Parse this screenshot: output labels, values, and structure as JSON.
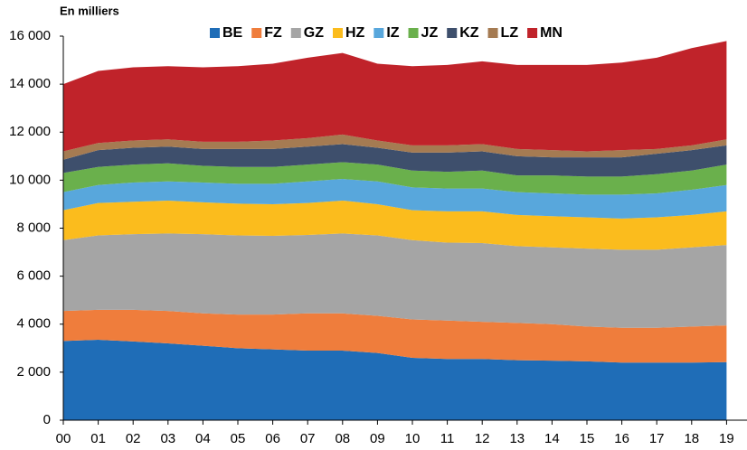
{
  "chart_data": {
    "type": "stacked_area",
    "y_label": "En milliers",
    "categories": [
      "00",
      "01",
      "02",
      "03",
      "04",
      "05",
      "06",
      "07",
      "08",
      "09",
      "10",
      "11",
      "12",
      "13",
      "14",
      "15",
      "16",
      "17",
      "18",
      "19"
    ],
    "series": [
      {
        "name": "BE",
        "color": "#1f6db7",
        "values": [
          3300,
          3350,
          3280,
          3200,
          3100,
          3000,
          2950,
          2900,
          2900,
          2800,
          2600,
          2550,
          2550,
          2500,
          2480,
          2450,
          2400,
          2400,
          2400,
          2420
        ]
      },
      {
        "name": "FZ",
        "color": "#ef7d3c",
        "values": [
          1250,
          1250,
          1320,
          1350,
          1350,
          1400,
          1450,
          1550,
          1550,
          1550,
          1600,
          1600,
          1550,
          1550,
          1520,
          1450,
          1450,
          1450,
          1500,
          1530
        ]
      },
      {
        "name": "GZ",
        "color": "#a5a5a5",
        "values": [
          2950,
          3100,
          3150,
          3230,
          3300,
          3300,
          3280,
          3270,
          3330,
          3350,
          3300,
          3250,
          3280,
          3200,
          3200,
          3250,
          3250,
          3250,
          3300,
          3350
        ]
      },
      {
        "name": "HZ",
        "color": "#fbbc1d",
        "values": [
          1250,
          1350,
          1350,
          1370,
          1330,
          1320,
          1320,
          1330,
          1370,
          1300,
          1250,
          1300,
          1320,
          1300,
          1300,
          1300,
          1300,
          1350,
          1350,
          1400
        ]
      },
      {
        "name": "IZ",
        "color": "#58a7dc",
        "values": [
          750,
          750,
          800,
          800,
          820,
          830,
          850,
          900,
          900,
          950,
          950,
          950,
          950,
          950,
          950,
          950,
          1000,
          1000,
          1050,
          1100
        ]
      },
      {
        "name": "JZ",
        "color": "#6ab04c",
        "values": [
          800,
          750,
          750,
          750,
          700,
          700,
          700,
          700,
          700,
          700,
          700,
          700,
          750,
          700,
          750,
          750,
          750,
          800,
          800,
          850
        ]
      },
      {
        "name": "KZ",
        "color": "#3e4f6c",
        "values": [
          550,
          700,
          700,
          700,
          700,
          750,
          750,
          750,
          750,
          700,
          750,
          800,
          800,
          800,
          750,
          800,
          800,
          850,
          850,
          800
        ]
      },
      {
        "name": "LZ",
        "color": "#a57b52",
        "values": [
          350,
          300,
          300,
          300,
          300,
          300,
          350,
          350,
          400,
          300,
          300,
          300,
          300,
          300,
          300,
          250,
          300,
          200,
          200,
          250
        ]
      },
      {
        "name": "MN",
        "color": "#c0232a",
        "values": [
          2800,
          3000,
          3050,
          3050,
          3100,
          3150,
          3200,
          3350,
          3400,
          3200,
          3300,
          3350,
          3450,
          3500,
          3550,
          3600,
          3650,
          3800,
          4050,
          4100
        ]
      }
    ],
    "ylim": [
      0,
      16000
    ],
    "yticks": [
      0,
      {
        "value": 2000,
        "label": "2 000"
      },
      {
        "value": 4000,
        "label": "4 000"
      },
      {
        "value": 6000,
        "label": "6 000"
      },
      {
        "value": 8000,
        "label": "8 000"
      },
      {
        "value": 10000,
        "label": "10 000"
      },
      {
        "value": 12000,
        "label": "12 000"
      },
      {
        "value": 14000,
        "label": "14 000"
      },
      {
        "value": 16000,
        "label": "16 000"
      }
    ],
    "grid": false
  }
}
